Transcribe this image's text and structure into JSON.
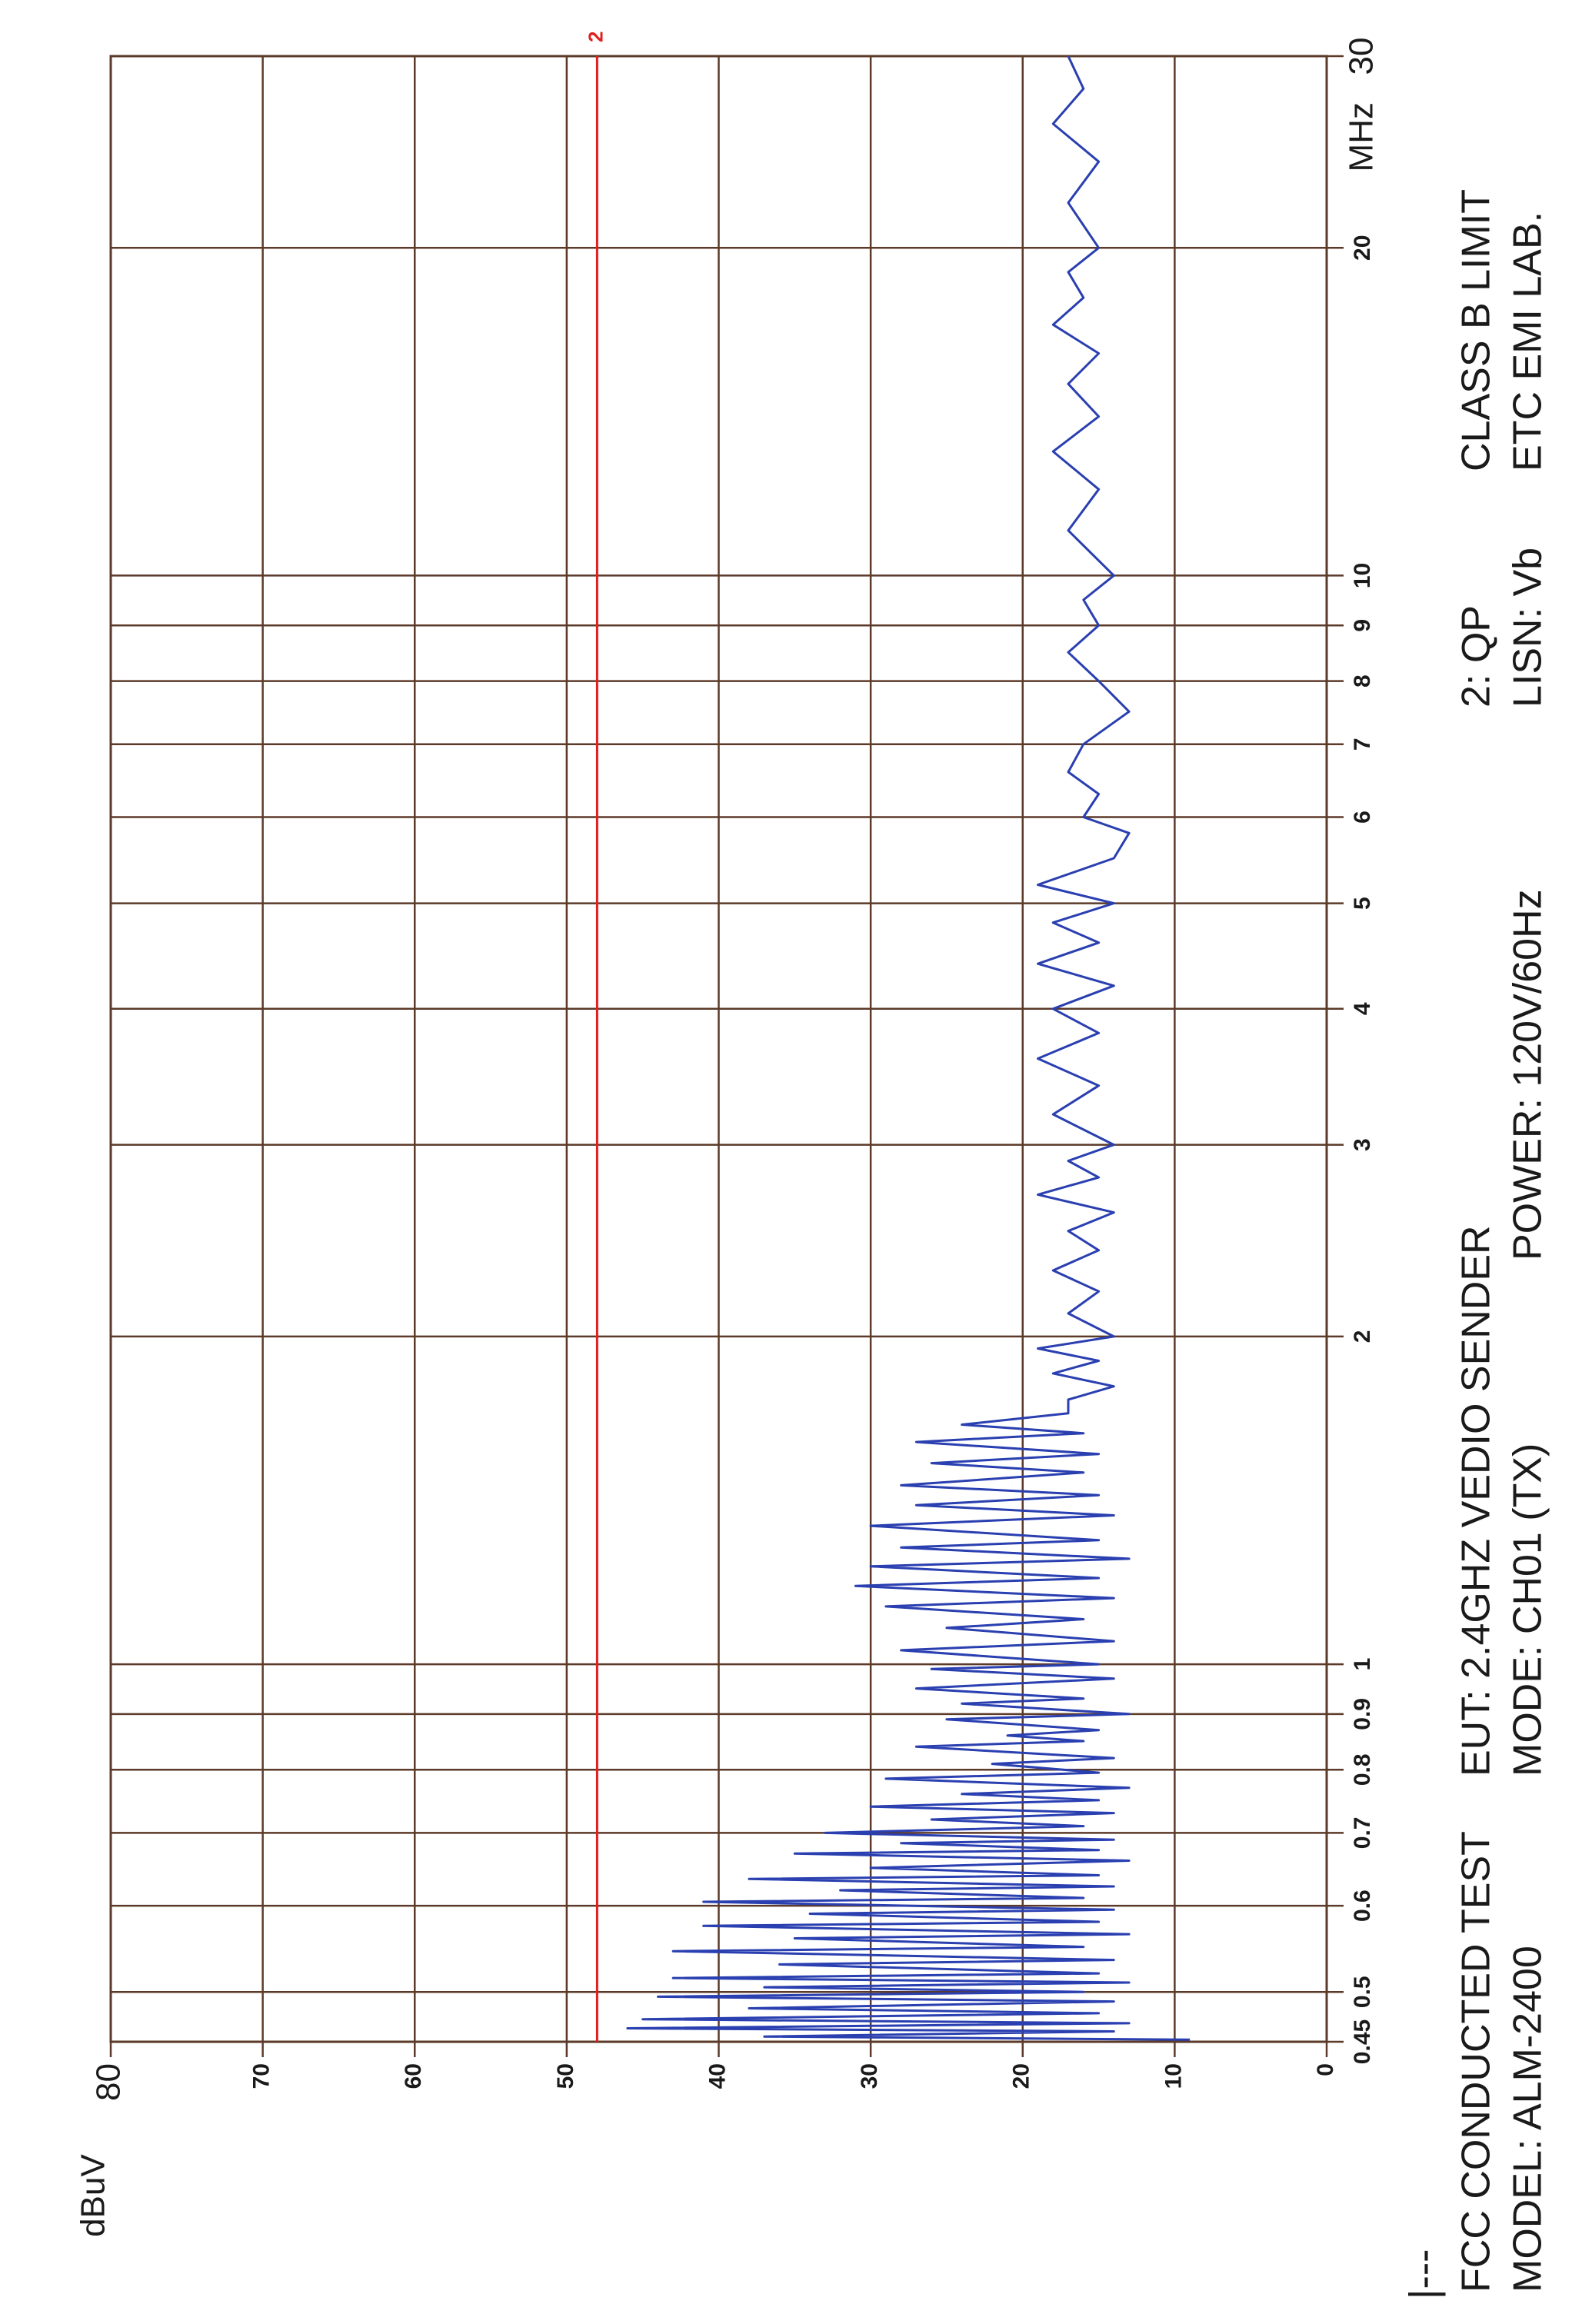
{
  "chart_data": {
    "type": "line",
    "ylabel": "dBuV",
    "xlabel": "MHz",
    "xscale": "log",
    "xlim": [
      0.45,
      30
    ],
    "xticks": [
      0.45,
      0.5,
      0.6,
      0.7,
      0.8,
      0.9,
      1,
      2,
      3,
      4,
      5,
      6,
      7,
      8,
      9,
      10,
      20,
      30
    ],
    "ylim": [
      0,
      80
    ],
    "yticks": [
      0,
      10,
      20,
      30,
      40,
      50,
      60,
      70,
      80
    ],
    "grid": true,
    "grid_color": "#5b3a29",
    "limit": {
      "name": "2",
      "value": 48,
      "color": "#e02020"
    },
    "legend_mark": "|---",
    "notes": [
      "FCC CONDUCTED TEST",
      "MODEL: ALM-2400",
      "EUT: 2.4GHZ VEDIO SENDER",
      "MODE: CH01 (TX)",
      "POWER: 120V/60Hz",
      "2: QP",
      "LISN: Vb",
      "CLASS B LIMIT",
      "ETC EMI LAB."
    ],
    "x": [
      0.452,
      0.455,
      0.46,
      0.463,
      0.468,
      0.472,
      0.478,
      0.483,
      0.49,
      0.495,
      0.5,
      0.505,
      0.51,
      0.515,
      0.52,
      0.53,
      0.535,
      0.545,
      0.55,
      0.56,
      0.565,
      0.575,
      0.58,
      0.59,
      0.595,
      0.605,
      0.61,
      0.62,
      0.625,
      0.635,
      0.64,
      0.65,
      0.66,
      0.67,
      0.675,
      0.685,
      0.69,
      0.7,
      0.71,
      0.72,
      0.73,
      0.74,
      0.75,
      0.76,
      0.77,
      0.785,
      0.795,
      0.81,
      0.82,
      0.84,
      0.85,
      0.86,
      0.87,
      0.89,
      0.9,
      0.92,
      0.93,
      0.95,
      0.97,
      0.99,
      1.0,
      1.03,
      1.05,
      1.08,
      1.1,
      1.13,
      1.15,
      1.18,
      1.2,
      1.23,
      1.25,
      1.28,
      1.3,
      1.34,
      1.37,
      1.4,
      1.43,
      1.46,
      1.5,
      1.53,
      1.56,
      1.6,
      1.63,
      1.66,
      1.7,
      1.75,
      1.8,
      1.85,
      1.9,
      1.95,
      2.0,
      2.1,
      2.2,
      2.3,
      2.4,
      2.5,
      2.6,
      2.7,
      2.8,
      2.9,
      3.0,
      3.2,
      3.4,
      3.6,
      3.8,
      4.0,
      4.2,
      4.4,
      4.6,
      4.8,
      5.0,
      5.2,
      5.5,
      5.8,
      6.0,
      6.3,
      6.6,
      7.0,
      7.5,
      8.0,
      8.5,
      9.0,
      9.5,
      10,
      11,
      12,
      13,
      14,
      15,
      16,
      17,
      18,
      19,
      20,
      22,
      24,
      26,
      28,
      30
    ],
    "series": [
      {
        "color": "#2a3fb0",
        "values": [
          9,
          37,
          14,
          46,
          13,
          45,
          15,
          38,
          14,
          44,
          16,
          37,
          13,
          43,
          15,
          36,
          14,
          43,
          16,
          35,
          13,
          41,
          15,
          34,
          14,
          41,
          16,
          32,
          14,
          38,
          15,
          30,
          13,
          35,
          15,
          28,
          14,
          33,
          16,
          26,
          14,
          30,
          15,
          24,
          13,
          29,
          15,
          22,
          14,
          27,
          16,
          21,
          15,
          25,
          13,
          24,
          16,
          27,
          14,
          26,
          15,
          28,
          14,
          25,
          16,
          29,
          14,
          31,
          15,
          30,
          13,
          28,
          15,
          30,
          14,
          27,
          15,
          28,
          16,
          26,
          15,
          27,
          16,
          24,
          17,
          17,
          14,
          18,
          15,
          19,
          14,
          17,
          15,
          18,
          15,
          17,
          14,
          19,
          15,
          17,
          14,
          18,
          15,
          19,
          15,
          18,
          14,
          19,
          15,
          18,
          14,
          19,
          14,
          13,
          16,
          15,
          17,
          16,
          13,
          15,
          17,
          15,
          16,
          14,
          17,
          15,
          18,
          15,
          17,
          15,
          18,
          16,
          17,
          15,
          17,
          15,
          18,
          16,
          17
        ]
      }
    ]
  }
}
